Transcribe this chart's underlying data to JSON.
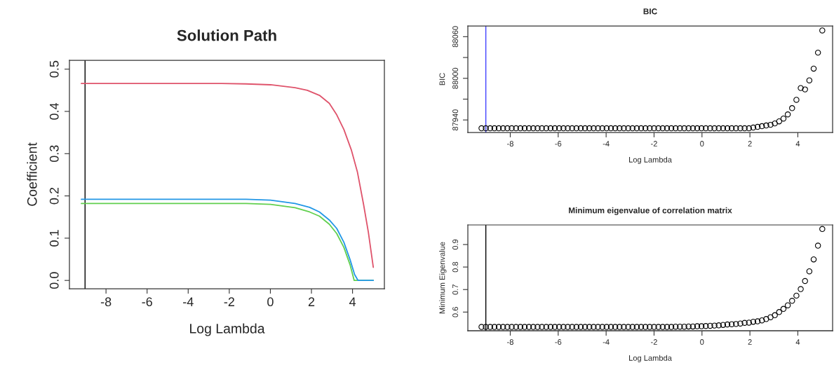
{
  "chart_data": [
    {
      "type": "line",
      "title": "Solution Path",
      "xlabel": "Log Lambda",
      "ylabel": "Coefficient",
      "xlim": [
        -9.78,
        5.55
      ],
      "ylim": [
        -0.0196,
        0.521
      ],
      "xticks": [
        -8,
        -6,
        -4,
        -2,
        0,
        2,
        4
      ],
      "yticks": [
        {
          "value": 0,
          "label": "0.0"
        },
        0.1,
        0.2,
        0.3,
        0.4,
        0.5
      ],
      "grid": false,
      "legend": false,
      "line_style": "solid",
      "marker": "none",
      "series": [
        {
          "color": "#df536b",
          "x": [
            -9.2,
            -2.37,
            -1.18,
            0.01,
            1.2,
            1.8,
            2.39,
            2.87,
            3.23,
            3.58,
            3.94,
            4.24,
            4.54,
            4.77,
            5.01
          ],
          "values": [
            0.466,
            0.466,
            0.465,
            0.463,
            0.456,
            0.45,
            0.438,
            0.419,
            0.392,
            0.357,
            0.309,
            0.256,
            0.179,
            0.114,
            0.031
          ]
        },
        {
          "color": "#61d04f",
          "x": [
            -9.2,
            -1.18,
            0.01,
            1.2,
            1.91,
            2.39,
            2.87,
            3.23,
            3.58,
            3.88,
            4.08,
            5.01
          ],
          "values": [
            0.182,
            0.182,
            0.18,
            0.172,
            0.162,
            0.152,
            0.133,
            0.111,
            0.078,
            0.037,
            0.0,
            0.0
          ]
        },
        {
          "color": "#2297e6",
          "x": [
            -9.2,
            -1.18,
            0.01,
            1.2,
            1.91,
            2.39,
            2.87,
            3.23,
            3.58,
            3.88,
            4.1,
            4.27,
            5.01
          ],
          "values": [
            0.192,
            0.192,
            0.19,
            0.182,
            0.173,
            0.162,
            0.143,
            0.123,
            0.09,
            0.049,
            0.014,
            0.0,
            0.0
          ]
        }
      ],
      "ref_lines": [
        {
          "axis": "x",
          "value": -9.02,
          "color": "#000000"
        }
      ]
    },
    {
      "type": "scatter",
      "title": "BIC",
      "xlabel": "Log Lambda",
      "ylabel": "BIC",
      "xlim": [
        -9.77,
        5.45
      ],
      "ylim": [
        87922,
        88075.5
      ],
      "xticks": [
        -8,
        -6,
        -4,
        -2,
        0,
        2,
        4
      ],
      "yticks": [
        87940,
        {
          "value": 87970,
          "label": null
        },
        88000,
        {
          "value": 88030,
          "label": null
        },
        88060
      ],
      "grid": false,
      "legend": false,
      "marker": "circle",
      "x": [
        -9.2,
        -9.02,
        -8.84,
        -8.66,
        -8.48,
        -8.3,
        -8.12,
        -7.94,
        -7.76,
        -7.58,
        -7.4,
        -7.22,
        -7.04,
        -6.86,
        -6.68,
        -6.5,
        -6.32,
        -6.14,
        -5.96,
        -5.78,
        -5.6,
        -5.42,
        -5.24,
        -5.06,
        -4.88,
        -4.7,
        -4.52,
        -4.34,
        -4.16,
        -3.98,
        -3.8,
        -3.62,
        -3.44,
        -3.26,
        -3.08,
        -2.9,
        -2.72,
        -2.54,
        -2.36,
        -2.18,
        -2.0,
        -1.82,
        -1.64,
        -1.46,
        -1.28,
        -1.1,
        -0.92,
        -0.74,
        -0.56,
        -0.38,
        -0.2,
        -0.02,
        0.16,
        0.34,
        0.52,
        0.7,
        0.88,
        1.06,
        1.24,
        1.42,
        1.6,
        1.78,
        1.96,
        2.14,
        2.32,
        2.5,
        2.68,
        2.86,
        3.04,
        3.22,
        3.4,
        3.58,
        3.76,
        3.94,
        4.12,
        4.3,
        4.48,
        4.66,
        4.84,
        5.02
      ],
      "series": [
        {
          "color": "#000000",
          "values": [
            87928,
            87928,
            87928,
            87928,
            87928,
            87928,
            87928,
            87928,
            87928,
            87928,
            87928,
            87928,
            87928,
            87928,
            87928,
            87928,
            87928,
            87928,
            87928,
            87928,
            87928,
            87928,
            87928,
            87928,
            87928,
            87928,
            87928,
            87928,
            87928,
            87928,
            87928,
            87928,
            87928,
            87928,
            87928,
            87928,
            87928,
            87928,
            87928,
            87928,
            87928,
            87928,
            87928,
            87928,
            87928,
            87928,
            87928,
            87928,
            87928,
            87928,
            87928,
            87928,
            87928,
            87928,
            87928,
            87928,
            87928,
            87928,
            87928,
            87928,
            87928,
            87928,
            87928,
            87929,
            87930,
            87931,
            87932,
            87933,
            87935,
            87938,
            87942,
            87948,
            87957,
            87969,
            87986,
            87984,
            87997,
            88014,
            88037,
            88069
          ]
        }
      ],
      "ref_lines": [
        {
          "axis": "x",
          "value": -9.02,
          "color": "#4040ff"
        }
      ]
    },
    {
      "type": "scatter",
      "title": "Minimum eigenvalue of correlation matrix",
      "xlabel": "Log Lambda",
      "ylabel": "Minimum Eigenvalue",
      "xlim": [
        -9.77,
        5.45
      ],
      "ylim": [
        0.517,
        0.987
      ],
      "xticks": [
        -8,
        -6,
        -4,
        -2,
        0,
        2,
        4
      ],
      "yticks": [
        0.6,
        0.7,
        0.8,
        0.9
      ],
      "grid": false,
      "legend": false,
      "marker": "circle",
      "x": [
        -9.2,
        -9.02,
        -8.84,
        -8.66,
        -8.48,
        -8.3,
        -8.12,
        -7.94,
        -7.76,
        -7.58,
        -7.4,
        -7.22,
        -7.04,
        -6.86,
        -6.68,
        -6.5,
        -6.32,
        -6.14,
        -5.96,
        -5.78,
        -5.6,
        -5.42,
        -5.24,
        -5.06,
        -4.88,
        -4.7,
        -4.52,
        -4.34,
        -4.16,
        -3.98,
        -3.8,
        -3.62,
        -3.44,
        -3.26,
        -3.08,
        -2.9,
        -2.72,
        -2.54,
        -2.36,
        -2.18,
        -2.0,
        -1.82,
        -1.64,
        -1.46,
        -1.28,
        -1.1,
        -0.92,
        -0.74,
        -0.56,
        -0.38,
        -0.2,
        -0.02,
        0.16,
        0.34,
        0.52,
        0.7,
        0.88,
        1.06,
        1.24,
        1.42,
        1.6,
        1.78,
        1.96,
        2.14,
        2.32,
        2.5,
        2.68,
        2.86,
        3.04,
        3.22,
        3.4,
        3.58,
        3.76,
        3.94,
        4.12,
        4.3,
        4.48,
        4.66,
        4.84,
        5.02
      ],
      "series": [
        {
          "color": "#000000",
          "values": [
            0.534,
            0.534,
            0.534,
            0.534,
            0.534,
            0.534,
            0.534,
            0.534,
            0.534,
            0.534,
            0.534,
            0.534,
            0.534,
            0.534,
            0.534,
            0.534,
            0.534,
            0.534,
            0.534,
            0.534,
            0.534,
            0.534,
            0.534,
            0.534,
            0.534,
            0.534,
            0.534,
            0.534,
            0.534,
            0.534,
            0.534,
            0.534,
            0.534,
            0.534,
            0.534,
            0.534,
            0.534,
            0.534,
            0.534,
            0.534,
            0.534,
            0.534,
            0.534,
            0.534,
            0.534,
            0.535,
            0.535,
            0.535,
            0.536,
            0.536,
            0.537,
            0.537,
            0.538,
            0.539,
            0.54,
            0.541,
            0.543,
            0.545,
            0.546,
            0.547,
            0.549,
            0.552,
            0.553,
            0.557,
            0.559,
            0.563,
            0.569,
            0.577,
            0.586,
            0.6,
            0.614,
            0.63,
            0.65,
            0.673,
            0.702,
            0.738,
            0.781,
            0.834,
            0.895,
            0.969
          ]
        }
      ],
      "ref_lines": [
        {
          "axis": "x",
          "value": -9.02,
          "color": "#000000"
        }
      ]
    }
  ]
}
